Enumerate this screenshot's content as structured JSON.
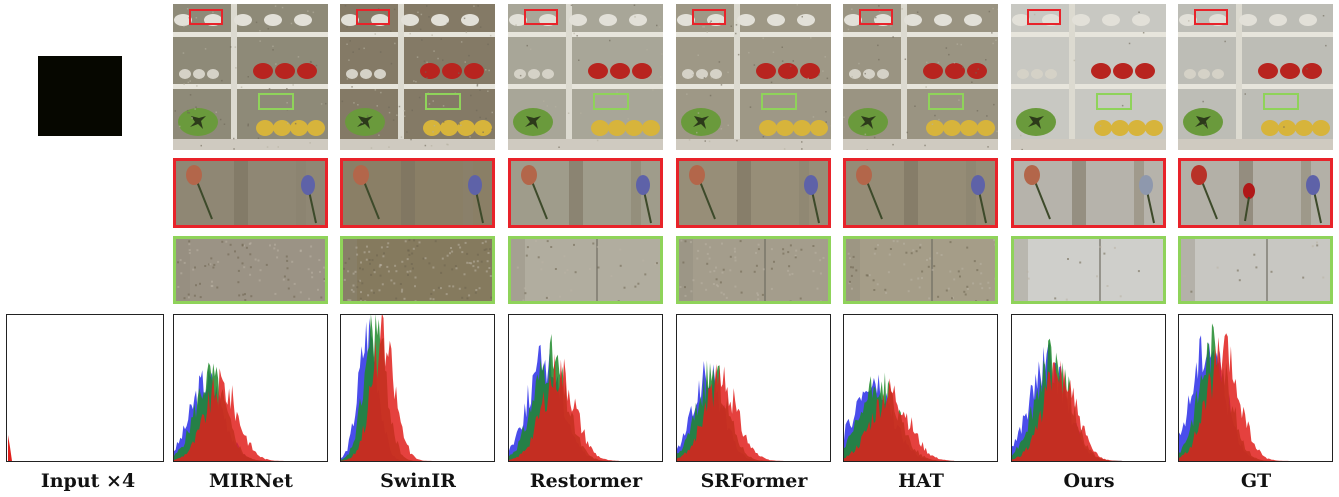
{
  "figure": {
    "labels": [
      "Input ×4",
      "MIRNet",
      "SwinIR",
      "Restormer",
      "SRFormer",
      "HAT",
      "Ours",
      "GT"
    ],
    "colors": {
      "red_box": "#e8232a",
      "green_box": "#8fd35a",
      "hist_red": "#e0201c",
      "hist_green": "#1f8a2a",
      "hist_blue": "#2a2ee8",
      "input_dark": "#060700"
    },
    "methods": [
      {
        "key": "mirnet",
        "tint": "#8e8a78",
        "noise": 0.35,
        "green_tint": "#9b9385",
        "red_tint": "#8f8774"
      },
      {
        "key": "swinir",
        "tint": "#847a66",
        "noise": 0.55,
        "green_tint": "#857a5e",
        "red_tint": "#8a7f66"
      },
      {
        "key": "restormer",
        "tint": "#a8a698",
        "noise": 0.15,
        "green_tint": "#b1ad9f",
        "red_tint": "#9f9c8b"
      },
      {
        "key": "srformer",
        "tint": "#9e9886",
        "noise": 0.3,
        "green_tint": "#a49d8c",
        "red_tint": "#978e78"
      },
      {
        "key": "hat",
        "tint": "#9a9482",
        "noise": 0.3,
        "green_tint": "#a59d88",
        "red_tint": "#958c76"
      },
      {
        "key": "ours",
        "tint": "#c8c8c2",
        "noise": 0.05,
        "green_tint": "#cfcfcb",
        "red_tint": "#b6b3ab"
      },
      {
        "key": "gt",
        "tint": "#bdbdb6",
        "noise": 0.05,
        "green_tint": "#c8c7c2",
        "red_tint": "#b3b0a7"
      }
    ]
  }
}
